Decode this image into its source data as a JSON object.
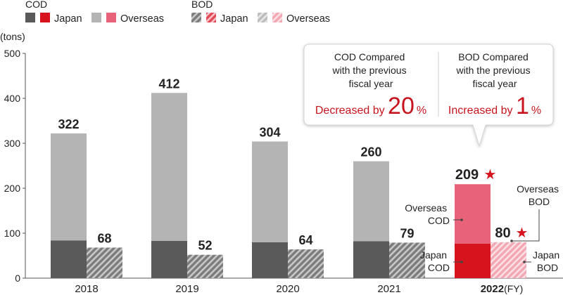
{
  "legend": {
    "cod_title": "COD",
    "bod_title": "BOD",
    "japan_label": "Japan",
    "overseas_label": "Overseas"
  },
  "unit_label": "(tons)",
  "fy_suffix": "(FY)",
  "colors": {
    "past_japan": "#5a5a5a",
    "past_overseas": "#b4b4b4",
    "current_japan": "#d7141e",
    "current_overseas": "#e8627a",
    "star": "#d7141e",
    "highlight_text": "#c8141e"
  },
  "callout": {
    "cod_heading": [
      "COD Compared",
      "with the previous",
      "fiscal year"
    ],
    "cod_prefix": "Decreased by ",
    "cod_value": "20",
    "cod_unit": "%",
    "bod_heading": [
      "BOD Compared",
      "with the previous",
      "fiscal year"
    ],
    "bod_prefix": "Increased by ",
    "bod_value": "1",
    "bod_unit": "%"
  },
  "annotations": {
    "overseas_cod": [
      "Overseas",
      "COD"
    ],
    "japan_cod": [
      "Japan",
      "COD"
    ],
    "overseas_bod": [
      "Overseas",
      "BOD"
    ],
    "japan_bod": [
      "Japan",
      "BOD"
    ]
  },
  "chart_data": {
    "type": "bar",
    "stacked": true,
    "categories": [
      "2018",
      "2019",
      "2020",
      "2021",
      "2022"
    ],
    "highlight_category": "2022",
    "ylim": [
      0,
      500
    ],
    "yticks": [
      0,
      100,
      200,
      300,
      400,
      500
    ],
    "grid": false,
    "series": [
      {
        "name": "COD Japan",
        "values": [
          84,
          83,
          80,
          82,
          77
        ]
      },
      {
        "name": "COD Overseas",
        "values": [
          238,
          329,
          224,
          178,
          132
        ]
      },
      {
        "name": "BOD Japan",
        "values": [
          68,
          52,
          64,
          79,
          80
        ]
      },
      {
        "name": "BOD Overseas",
        "values": [
          0,
          0,
          0,
          0,
          0
        ]
      }
    ],
    "cod_totals": [
      322,
      412,
      304,
      260,
      209
    ],
    "bod_totals": [
      68,
      52,
      64,
      79,
      80
    ],
    "cod_total_labels": [
      "322",
      "412",
      "304",
      "260",
      "209"
    ],
    "bod_total_labels": [
      "68",
      "52",
      "64",
      "79",
      "80"
    ]
  }
}
